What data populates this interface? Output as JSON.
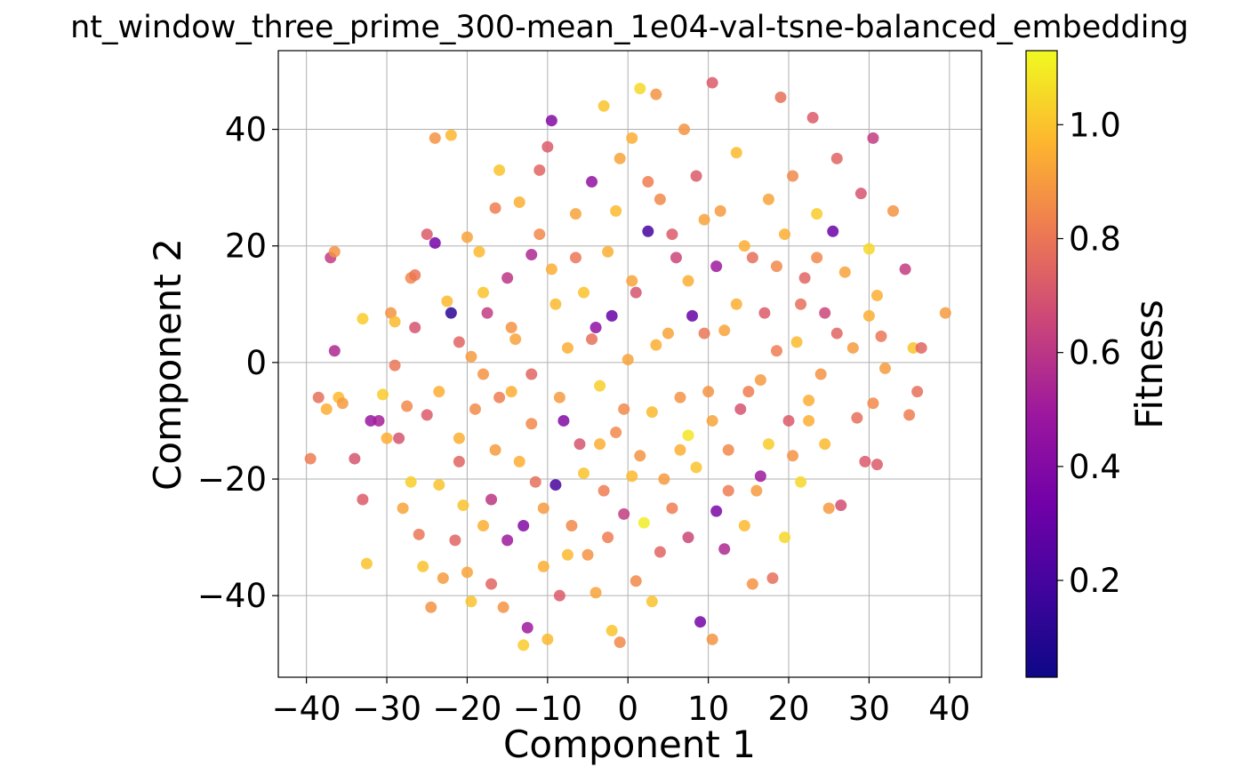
{
  "chart_data": {
    "type": "scatter",
    "title": "nt_window_three_prime_300-mean_1e04-val-tsne-balanced_embedding",
    "xlabel": "Component 1",
    "ylabel": "Component 2",
    "xlim": [
      -43.5,
      44
    ],
    "ylim": [
      -54,
      53.5
    ],
    "xticks": [
      -40,
      -30,
      -20,
      -10,
      0,
      10,
      20,
      30,
      40
    ],
    "yticks": [
      -40,
      -20,
      0,
      20,
      40
    ],
    "xtick_labels": [
      "−40",
      "−30",
      "−20",
      "−10",
      "0",
      "10",
      "20",
      "30",
      "40"
    ],
    "ytick_labels": [
      "−40",
      "−20",
      "0",
      "20",
      "40"
    ],
    "grid": true,
    "colormap": "plasma",
    "colorbar": {
      "label": "Fitness",
      "range": [
        0.03,
        1.13
      ],
      "ticks": [
        0.2,
        0.4,
        0.6,
        0.8,
        1.0
      ],
      "tick_labels": [
        "0.2",
        "0.4",
        "0.6",
        "0.8",
        "1.0"
      ]
    },
    "points": [
      [
        -39.5,
        -16.5,
        0.82
      ],
      [
        -38.5,
        -6.0,
        0.78
      ],
      [
        -37.5,
        -8.0,
        0.95
      ],
      [
        -37.0,
        18.0,
        0.62
      ],
      [
        -36.5,
        19.0,
        0.88
      ],
      [
        -36.5,
        2.0,
        0.55
      ],
      [
        -36.0,
        -6.0,
        0.98
      ],
      [
        -34.0,
        -16.5,
        0.7
      ],
      [
        -33.0,
        -23.5,
        0.72
      ],
      [
        -33.0,
        7.5,
        1.02
      ],
      [
        -32.5,
        -34.5,
        1.0
      ],
      [
        -32.0,
        -10.0,
        0.48
      ],
      [
        -31.0,
        -10.0,
        0.52
      ],
      [
        -30.5,
        -5.5,
        1.02
      ],
      [
        -30.0,
        -13.0,
        0.95
      ],
      [
        -29.5,
        8.5,
        0.88
      ],
      [
        -29.0,
        -0.5,
        0.8
      ],
      [
        -28.5,
        -13.0,
        0.7
      ],
      [
        -28.0,
        -25.0,
        0.92
      ],
      [
        -27.0,
        14.5,
        0.85
      ],
      [
        -27.0,
        -20.5,
        1.03
      ],
      [
        -26.5,
        6.0,
        0.7
      ],
      [
        -26.0,
        -29.5,
        0.8
      ],
      [
        -25.5,
        -35.0,
        1.0
      ],
      [
        -25.0,
        -9.0,
        0.72
      ],
      [
        -25.0,
        22.0,
        0.72
      ],
      [
        -24.5,
        -42.0,
        0.88
      ],
      [
        -24.0,
        20.5,
        0.35
      ],
      [
        -24.0,
        38.5,
        0.88
      ],
      [
        -23.5,
        -21.0,
        1.0
      ],
      [
        -23.0,
        -37.0,
        0.9
      ],
      [
        -22.5,
        10.5,
        0.98
      ],
      [
        -22.0,
        8.5,
        0.12
      ],
      [
        -22.0,
        39.0,
        0.97
      ],
      [
        -21.5,
        -30.5,
        0.75
      ],
      [
        -21.0,
        -13.0,
        0.95
      ],
      [
        -21.0,
        3.5,
        0.75
      ],
      [
        -20.5,
        -24.5,
        1.0
      ],
      [
        -20.0,
        21.5,
        0.92
      ],
      [
        -20.0,
        -36.0,
        0.92
      ],
      [
        -19.5,
        -41.0,
        1.0
      ],
      [
        -19.0,
        -8.0,
        0.86
      ],
      [
        -18.5,
        19.0,
        0.98
      ],
      [
        -18.0,
        -28.0,
        0.95
      ],
      [
        -18.0,
        -2.0,
        0.88
      ],
      [
        -17.5,
        8.5,
        0.62
      ],
      [
        -17.0,
        -23.5,
        0.6
      ],
      [
        -17.0,
        -38.0,
        0.75
      ],
      [
        -16.5,
        26.5,
        0.82
      ],
      [
        -16.5,
        -15.0,
        0.9
      ],
      [
        -16.0,
        33.0,
        1.0
      ],
      [
        -15.5,
        -42.0,
        0.88
      ],
      [
        -15.0,
        -30.5,
        0.5
      ],
      [
        -15.0,
        14.5,
        0.6
      ],
      [
        -14.5,
        -5.0,
        0.95
      ],
      [
        -14.0,
        4.0,
        0.92
      ],
      [
        -13.5,
        27.5,
        0.95
      ],
      [
        -13.0,
        -48.5,
        1.02
      ],
      [
        -13.0,
        -28.0,
        0.4
      ],
      [
        -12.5,
        -45.5,
        0.5
      ],
      [
        -12.0,
        18.5,
        0.55
      ],
      [
        -12.0,
        -10.5,
        0.85
      ],
      [
        -11.5,
        -20.5,
        0.78
      ],
      [
        -11.0,
        33.0,
        0.75
      ],
      [
        -10.5,
        -35.0,
        0.95
      ],
      [
        -10.0,
        37.0,
        0.72
      ],
      [
        -10.0,
        -47.5,
        0.98
      ],
      [
        -9.5,
        41.5,
        0.4
      ],
      [
        -9.0,
        -21.0,
        0.2
      ],
      [
        -9.0,
        10.0,
        0.98
      ],
      [
        -8.5,
        -40.0,
        0.72
      ],
      [
        -8.0,
        -10.0,
        0.4
      ],
      [
        -7.5,
        2.5,
        0.95
      ],
      [
        -7.0,
        -28.0,
        0.85
      ],
      [
        -6.5,
        25.5,
        0.92
      ],
      [
        -6.0,
        -14.0,
        0.7
      ],
      [
        -5.5,
        12.0,
        1.0
      ],
      [
        -5.0,
        -33.0,
        0.88
      ],
      [
        -4.5,
        31.0,
        0.45
      ],
      [
        -4.0,
        -39.5,
        0.92
      ],
      [
        -4.0,
        6.0,
        0.45
      ],
      [
        -3.5,
        -4.0,
        1.03
      ],
      [
        -3.0,
        44.0,
        1.0
      ],
      [
        -3.0,
        -22.0,
        0.82
      ],
      [
        -2.5,
        19.0,
        0.95
      ],
      [
        -2.0,
        8.0,
        0.3
      ],
      [
        -2.0,
        -46.0,
        1.0
      ],
      [
        -1.5,
        -12.0,
        0.85
      ],
      [
        -1.0,
        35.0,
        0.92
      ],
      [
        -1.0,
        -48.0,
        0.85
      ],
      [
        -0.5,
        -26.0,
        0.62
      ],
      [
        0.0,
        0.5,
        0.92
      ],
      [
        0.5,
        -19.5,
        0.98
      ],
      [
        0.5,
        38.5,
        0.95
      ],
      [
        1.0,
        -37.5,
        0.85
      ],
      [
        1.0,
        12.0,
        0.7
      ],
      [
        1.5,
        47.0,
        1.05
      ],
      [
        2.0,
        -27.5,
        1.1
      ],
      [
        2.5,
        22.5,
        0.2
      ],
      [
        3.0,
        -8.5,
        0.98
      ],
      [
        3.0,
        -41.0,
        1.0
      ],
      [
        3.5,
        46.0,
        0.88
      ],
      [
        4.0,
        28.0,
        0.85
      ],
      [
        4.0,
        -32.5,
        0.75
      ],
      [
        5.0,
        5.0,
        0.92
      ],
      [
        5.5,
        -25.0,
        0.82
      ],
      [
        6.0,
        18.0,
        0.65
      ],
      [
        6.5,
        -15.0,
        0.95
      ],
      [
        7.0,
        40.0,
        0.88
      ],
      [
        7.5,
        -30.0,
        0.65
      ],
      [
        7.5,
        -12.5,
        1.08
      ],
      [
        8.0,
        8.0,
        0.3
      ],
      [
        8.5,
        32.0,
        0.72
      ],
      [
        9.0,
        -44.5,
        0.35
      ],
      [
        9.5,
        24.5,
        0.92
      ],
      [
        10.0,
        -5.0,
        0.88
      ],
      [
        10.5,
        48.0,
        0.72
      ],
      [
        10.5,
        -47.5,
        0.88
      ],
      [
        11.0,
        -25.5,
        0.38
      ],
      [
        11.0,
        16.5,
        0.5
      ],
      [
        12.0,
        -32.0,
        0.55
      ],
      [
        12.0,
        5.5,
        0.92
      ],
      [
        12.5,
        -15.0,
        0.85
      ],
      [
        13.5,
        36.0,
        0.98
      ],
      [
        14.0,
        -8.0,
        0.7
      ],
      [
        14.5,
        20.0,
        0.95
      ],
      [
        15.0,
        -5.0,
        0.82
      ],
      [
        15.5,
        -38.0,
        0.88
      ],
      [
        16.0,
        -22.0,
        0.9
      ],
      [
        16.5,
        -19.5,
        0.5
      ],
      [
        17.0,
        8.5,
        0.72
      ],
      [
        17.5,
        28.0,
        0.92
      ],
      [
        18.0,
        -37.0,
        0.78
      ],
      [
        18.5,
        16.5,
        0.85
      ],
      [
        19.0,
        45.5,
        0.78
      ],
      [
        19.5,
        -30.0,
        1.05
      ],
      [
        20.0,
        -10.0,
        0.72
      ],
      [
        20.5,
        32.0,
        0.85
      ],
      [
        21.0,
        3.5,
        0.98
      ],
      [
        21.5,
        -20.5,
        1.05
      ],
      [
        22.0,
        14.5,
        0.75
      ],
      [
        22.5,
        -6.5,
        0.95
      ],
      [
        23.0,
        42.0,
        0.72
      ],
      [
        23.5,
        25.5,
        1.02
      ],
      [
        24.0,
        -2.0,
        0.88
      ],
      [
        24.5,
        8.5,
        0.65
      ],
      [
        25.0,
        -25.0,
        0.9
      ],
      [
        25.5,
        22.5,
        0.32
      ],
      [
        26.0,
        35.0,
        0.75
      ],
      [
        26.5,
        -24.5,
        0.68
      ],
      [
        27.0,
        15.5,
        0.92
      ],
      [
        28.0,
        2.5,
        0.9
      ],
      [
        28.5,
        -9.5,
        0.78
      ],
      [
        29.0,
        29.0,
        0.7
      ],
      [
        29.5,
        -17.0,
        0.72
      ],
      [
        30.0,
        19.5,
        1.05
      ],
      [
        30.0,
        8.0,
        0.95
      ],
      [
        30.5,
        -7.0,
        0.85
      ],
      [
        30.5,
        38.5,
        0.62
      ],
      [
        31.0,
        -17.5,
        0.72
      ],
      [
        31.0,
        11.5,
        0.95
      ],
      [
        31.5,
        4.5,
        0.8
      ],
      [
        32.0,
        -1.0,
        0.9
      ],
      [
        33.0,
        26.0,
        0.88
      ],
      [
        34.5,
        16.0,
        0.62
      ],
      [
        35.0,
        -9.0,
        0.82
      ],
      [
        35.5,
        2.5,
        1.0
      ],
      [
        36.0,
        -5.0,
        0.78
      ],
      [
        36.5,
        2.5,
        0.75
      ],
      [
        39.5,
        8.5,
        0.9
      ],
      [
        -35.5,
        -7.0,
        0.9
      ],
      [
        -29.0,
        7.0,
        0.98
      ],
      [
        -27.5,
        -7.5,
        0.85
      ],
      [
        -26.5,
        15.0,
        0.8
      ],
      [
        -23.5,
        -5.0,
        0.95
      ],
      [
        -21.0,
        -17.0,
        0.75
      ],
      [
        -19.5,
        1.0,
        0.9
      ],
      [
        -18.0,
        12.0,
        1.0
      ],
      [
        -16.0,
        -6.0,
        0.82
      ],
      [
        -14.5,
        6.0,
        0.88
      ],
      [
        -13.5,
        -17.0,
        0.95
      ],
      [
        -12.0,
        -2.0,
        0.75
      ],
      [
        -11.0,
        22.0,
        0.85
      ],
      [
        -10.5,
        -25.0,
        0.9
      ],
      [
        -9.5,
        16.0,
        0.95
      ],
      [
        -8.5,
        -6.0,
        0.9
      ],
      [
        -7.5,
        -33.0,
        0.98
      ],
      [
        -6.5,
        18.0,
        0.8
      ],
      [
        -5.5,
        -19.0,
        1.0
      ],
      [
        -4.5,
        4.0,
        0.78
      ],
      [
        -3.5,
        -14.0,
        0.95
      ],
      [
        -2.5,
        -30.0,
        0.82
      ],
      [
        -1.5,
        26.0,
        0.98
      ],
      [
        -0.5,
        -8.0,
        0.85
      ],
      [
        0.5,
        14.0,
        0.92
      ],
      [
        1.5,
        -16.0,
        0.88
      ],
      [
        2.5,
        31.0,
        0.82
      ],
      [
        3.5,
        3.0,
        0.95
      ],
      [
        4.5,
        -20.0,
        0.9
      ],
      [
        5.5,
        22.0,
        0.72
      ],
      [
        6.5,
        -6.0,
        0.88
      ],
      [
        7.5,
        14.0,
        0.95
      ],
      [
        8.5,
        -18.0,
        1.0
      ],
      [
        9.5,
        5.0,
        0.8
      ],
      [
        10.5,
        -10.0,
        0.92
      ],
      [
        11.5,
        26.0,
        0.9
      ],
      [
        12.5,
        -22.0,
        0.82
      ],
      [
        13.5,
        10.0,
        0.95
      ],
      [
        14.5,
        -28.0,
        0.98
      ],
      [
        15.5,
        18.0,
        0.78
      ],
      [
        16.5,
        -3.0,
        0.9
      ],
      [
        17.5,
        -14.0,
        1.02
      ],
      [
        18.5,
        2.0,
        0.82
      ],
      [
        19.5,
        22.0,
        0.95
      ],
      [
        20.5,
        -16.0,
        0.88
      ],
      [
        21.5,
        10.0,
        0.78
      ],
      [
        22.5,
        -10.0,
        0.95
      ],
      [
        23.5,
        18.0,
        0.85
      ],
      [
        24.5,
        -14.0,
        0.98
      ],
      [
        26.0,
        5.0,
        0.75
      ]
    ]
  }
}
